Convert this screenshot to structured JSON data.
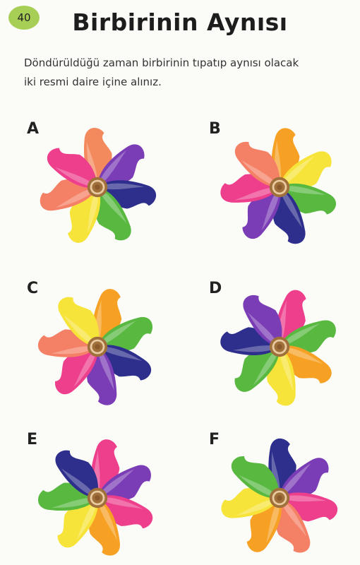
{
  "page_number": "40",
  "title": "Birbirinin Aynısı",
  "instructions": [
    "Döndürüldüğü zaman birbirinin tıpatıp aynısı olacak",
    "iki resmi daire içine alınız."
  ],
  "colors": {
    "page_badge": "#a8cf55",
    "hub_outer": "#a0703a",
    "hub_ring": "#e8c9a0",
    "hub_inner": "#8a5a2c"
  },
  "options": [
    {
      "letter": "A",
      "blades": [
        "#f38a5e",
        "#7b3db5",
        "#2e2f8c",
        "#58b840",
        "#f7e43a",
        "#f48066",
        "#ee3f8c"
      ]
    },
    {
      "letter": "B",
      "blades": [
        "#f6a124",
        "#f7e43a",
        "#58b840",
        "#2e2f8c",
        "#7b3db5",
        "#ee3f8c",
        "#f48066"
      ]
    },
    {
      "letter": "C",
      "blades": [
        "#f6a124",
        "#58b840",
        "#2e2f8c",
        "#7b3db5",
        "#ee3f8c",
        "#f48066",
        "#f7e43a"
      ]
    },
    {
      "letter": "D",
      "blades": [
        "#ee3f8c",
        "#58b840",
        "#f6a124",
        "#f7e43a",
        "#58b840",
        "#2e2f8c",
        "#7b3db5"
      ]
    },
    {
      "letter": "E",
      "blades": [
        "#ee3f8c",
        "#7b3db5",
        "#ee3f8c",
        "#f6a124",
        "#f7e43a",
        "#58b840",
        "#2e2f8c"
      ]
    },
    {
      "letter": "F",
      "blades": [
        "#2e2f8c",
        "#7b3db5",
        "#ee3f8c",
        "#f48066",
        "#f6a124",
        "#f7e43a",
        "#58b840"
      ]
    }
  ]
}
